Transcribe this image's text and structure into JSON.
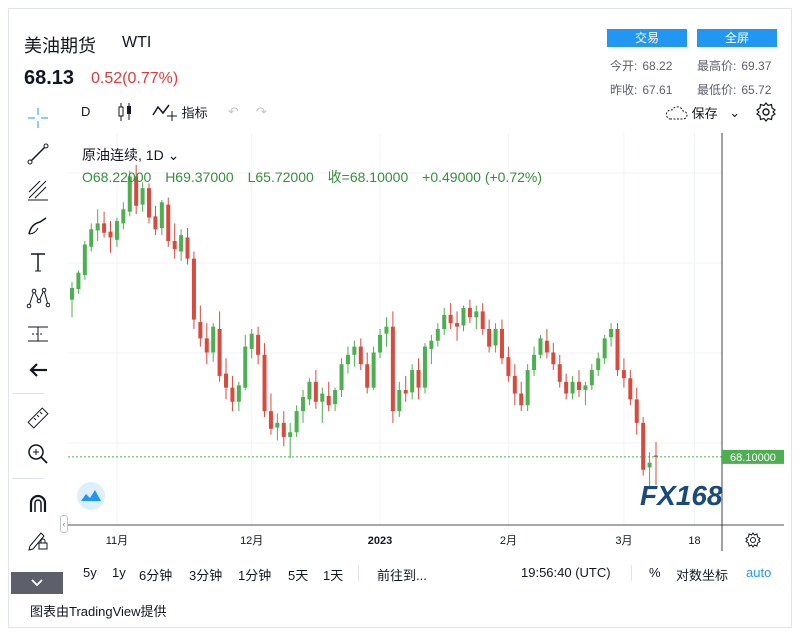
{
  "header": {
    "title": "美油期货",
    "symbol": "WTI",
    "price": "68.13",
    "change": "0.52(0.77%)",
    "trade_button": "交易",
    "fullscreen_button": "全屏",
    "stats": [
      {
        "label": "今开:",
        "value": "68.22"
      },
      {
        "label": "最高价:",
        "value": "69.37"
      },
      {
        "label": "昨收:",
        "value": "67.61"
      },
      {
        "label": "最低价:",
        "value": "65.72"
      }
    ]
  },
  "toolbar": {
    "interval": "D",
    "indicators": "指标",
    "save": "保存"
  },
  "legend": {
    "name": "原油连续, 1D",
    "open": "O68.22000",
    "high": "H69.37000",
    "low": "L65.72000",
    "close": "收=68.10000",
    "chg": "+0.49000 (+0.72%)"
  },
  "price_tag": "68.10000",
  "watermark": "FX168",
  "bottom": {
    "ranges": [
      "5y",
      "1y",
      "6分钟",
      "3分钟",
      "1分钟",
      "5天",
      "1天"
    ],
    "goto": "前往到...",
    "time": "19:56:40 (UTC)",
    "percent": "%",
    "log": "对数坐标",
    "auto": "auto"
  },
  "footer": "图表由TradingView提供",
  "colors": {
    "up": "#4caf50",
    "down": "#d84a3d",
    "accent": "#2196f3"
  },
  "chart_data": {
    "type": "candlestick",
    "xlabels": [
      "11月",
      "12月",
      "2023",
      "2月",
      "3月",
      "18"
    ],
    "last_value": 68.1,
    "candles": [
      [
        81.5,
        83.0,
        80.0,
        82.5
      ],
      [
        82.4,
        84.0,
        82.0,
        83.8
      ],
      [
        83.6,
        86.5,
        83.2,
        86.2
      ],
      [
        86.0,
        88.0,
        85.6,
        87.5
      ],
      [
        87.4,
        89.2,
        86.5,
        88.0
      ],
      [
        88.0,
        89.0,
        86.8,
        87.2
      ],
      [
        87.3,
        88.2,
        85.5,
        86.8
      ],
      [
        86.6,
        88.5,
        86.0,
        88.2
      ],
      [
        88.0,
        89.8,
        87.5,
        89.2
      ],
      [
        89.0,
        92.5,
        88.6,
        92.0
      ],
      [
        92.0,
        93.0,
        88.8,
        89.5
      ],
      [
        89.6,
        91.5,
        89.0,
        91.0
      ],
      [
        91.0,
        91.4,
        88.0,
        88.5
      ],
      [
        88.6,
        89.5,
        87.0,
        87.5
      ],
      [
        87.6,
        90.0,
        87.0,
        89.8
      ],
      [
        89.6,
        90.2,
        86.0,
        86.5
      ],
      [
        86.5,
        88.0,
        85.0,
        85.8
      ],
      [
        85.6,
        87.5,
        84.8,
        87.0
      ],
      [
        86.8,
        87.6,
        84.5,
        85.0
      ],
      [
        85.0,
        85.6,
        79.0,
        79.8
      ],
      [
        79.6,
        81.0,
        77.5,
        78.2
      ],
      [
        78.2,
        79.5,
        76.0,
        77.0
      ],
      [
        77.0,
        79.5,
        76.2,
        79.2
      ],
      [
        79.0,
        80.5,
        74.5,
        75.0
      ],
      [
        75.2,
        76.5,
        73.0,
        74.0
      ],
      [
        74.0,
        75.0,
        72.0,
        72.8
      ],
      [
        72.8,
        74.5,
        72.0,
        74.2
      ],
      [
        74.0,
        78.5,
        73.8,
        77.5
      ],
      [
        77.3,
        79.0,
        76.5,
        78.6
      ],
      [
        78.5,
        79.2,
        76.0,
        76.8
      ],
      [
        76.8,
        77.8,
        71.5,
        72.0
      ],
      [
        72.0,
        73.5,
        70.0,
        70.5
      ],
      [
        70.6,
        71.8,
        69.5,
        71.0
      ],
      [
        71.0,
        72.0,
        69.0,
        69.8
      ],
      [
        69.8,
        71.0,
        68.0,
        70.2
      ],
      [
        70.2,
        72.5,
        69.8,
        72.0
      ],
      [
        72.0,
        73.8,
        71.0,
        73.2
      ],
      [
        73.0,
        74.8,
        72.5,
        74.5
      ],
      [
        74.5,
        75.5,
        72.2,
        72.8
      ],
      [
        72.8,
        74.0,
        71.0,
        73.5
      ],
      [
        73.3,
        74.5,
        72.0,
        72.5
      ],
      [
        72.6,
        74.0,
        72.0,
        73.8
      ],
      [
        73.8,
        76.5,
        73.2,
        76.0
      ],
      [
        76.0,
        77.5,
        75.2,
        76.8
      ],
      [
        76.8,
        78.0,
        75.8,
        77.5
      ],
      [
        77.5,
        78.2,
        75.5,
        76.0
      ],
      [
        76.0,
        77.0,
        73.5,
        74.0
      ],
      [
        74.0,
        77.5,
        73.8,
        77.0
      ],
      [
        77.0,
        79.0,
        76.5,
        78.5
      ],
      [
        78.6,
        80.0,
        77.5,
        79.2
      ],
      [
        79.2,
        80.5,
        71.0,
        72.0
      ],
      [
        72.0,
        74.5,
        71.5,
        73.8
      ],
      [
        73.8,
        75.0,
        72.8,
        73.5
      ],
      [
        73.6,
        76.0,
        73.0,
        75.5
      ],
      [
        75.5,
        76.5,
        73.0,
        74.0
      ],
      [
        74.0,
        77.8,
        73.5,
        77.5
      ],
      [
        77.3,
        78.5,
        76.0,
        78.0
      ],
      [
        78.0,
        79.5,
        77.5,
        79.0
      ],
      [
        79.0,
        80.8,
        78.5,
        80.2
      ],
      [
        80.2,
        81.2,
        79.0,
        79.5
      ],
      [
        79.5,
        80.5,
        78.0,
        79.2
      ],
      [
        79.3,
        81.0,
        78.8,
        80.8
      ],
      [
        80.8,
        81.5,
        79.5,
        80.0
      ],
      [
        80.0,
        81.0,
        79.0,
        80.5
      ],
      [
        80.5,
        81.2,
        78.5,
        79.0
      ],
      [
        79.0,
        79.8,
        77.0,
        77.5
      ],
      [
        77.6,
        79.5,
        77.0,
        79.0
      ],
      [
        79.0,
        79.8,
        76.0,
        76.5
      ],
      [
        76.6,
        77.5,
        74.5,
        75.0
      ],
      [
        75.0,
        76.0,
        72.5,
        73.5
      ],
      [
        73.5,
        74.5,
        72.0,
        72.5
      ],
      [
        72.5,
        76.0,
        72.0,
        75.5
      ],
      [
        75.5,
        77.5,
        75.0,
        76.8
      ],
      [
        76.8,
        78.5,
        76.5,
        78.2
      ],
      [
        78.0,
        79.0,
        76.5,
        77.0
      ],
      [
        77.0,
        77.8,
        75.5,
        76.0
      ],
      [
        76.0,
        76.8,
        74.0,
        74.5
      ],
      [
        74.5,
        75.2,
        73.0,
        73.5
      ],
      [
        73.5,
        75.0,
        73.0,
        74.5
      ],
      [
        74.5,
        75.5,
        73.2,
        73.8
      ],
      [
        73.8,
        74.5,
        72.5,
        74.2
      ],
      [
        74.2,
        76.0,
        73.8,
        75.5
      ],
      [
        75.5,
        77.0,
        75.0,
        76.5
      ],
      [
        76.5,
        78.5,
        76.0,
        78.2
      ],
      [
        78.3,
        79.5,
        77.5,
        79.0
      ],
      [
        79.0,
        79.5,
        75.0,
        75.5
      ],
      [
        75.5,
        76.5,
        74.0,
        74.8
      ],
      [
        74.8,
        75.5,
        72.5,
        73.0
      ],
      [
        73.0,
        74.0,
        70.0,
        71.0
      ],
      [
        71.0,
        71.5,
        66.5,
        67.0
      ],
      [
        67.2,
        68.5,
        65.5,
        67.61
      ],
      [
        68.22,
        69.37,
        65.72,
        68.1
      ]
    ]
  }
}
